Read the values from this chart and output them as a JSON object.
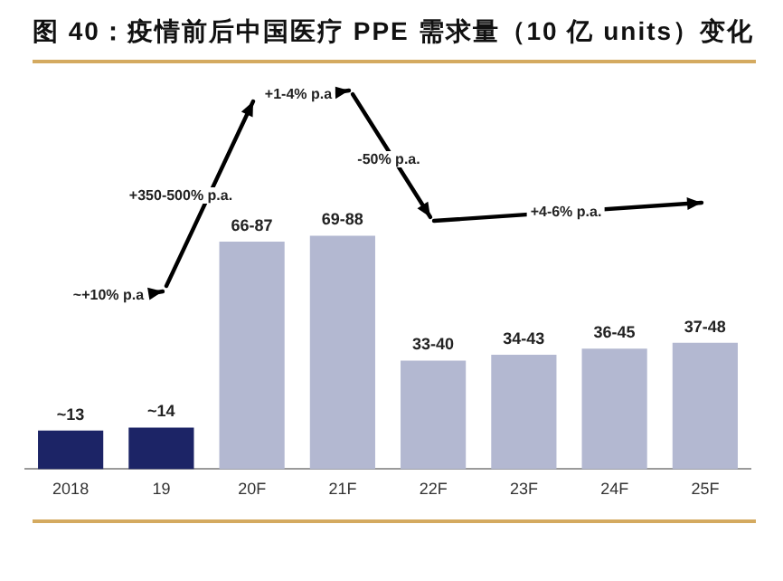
{
  "chart_data": {
    "type": "bar",
    "title": "图 40：疫情前后中国医疗 PPE 需求量（10 亿 units）变化",
    "categories": [
      "2018",
      "19",
      "20F",
      "21F",
      "22F",
      "23F",
      "24F",
      "25F"
    ],
    "values": [
      13,
      14,
      76.5,
      78.5,
      36.5,
      38.5,
      40.5,
      42.5
    ],
    "colors": [
      "#1c2466",
      "#1c2466",
      "#b3b8d1",
      "#b3b8d1",
      "#b3b8d1",
      "#b3b8d1",
      "#b3b8d1",
      "#b3b8d1"
    ],
    "tick_labels": "x",
    "value_labels": [
      "~13",
      "~14",
      "66-87",
      "69-88",
      "33-40",
      "34-43",
      "36-45",
      "37-48"
    ],
    "annotations": [
      "~+10% p.a",
      "+350-500% p.a.",
      "+1-4% p.a",
      "-50% p.a.",
      "+4-6% p.a."
    ],
    "grid": false,
    "legend": false
  }
}
